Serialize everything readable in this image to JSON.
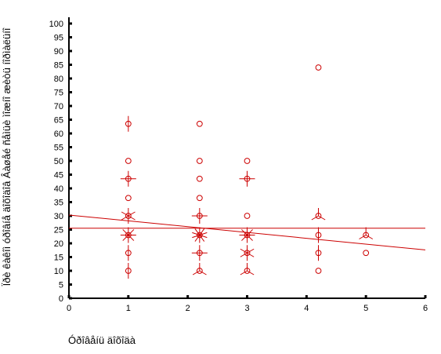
{
  "chart_data": {
    "type": "scatter",
    "ylabel": "Ïðè êàêîì óðîâíå äîõîäîâ Âàøåé ñåìüè ìîæíî æèòü íîðìàëüíî",
    "xlabel": "Óðîâåíü äîõîäà",
    "xlim": [
      0,
      6
    ],
    "ylim": [
      0,
      100
    ],
    "x_ticks": [
      0,
      1,
      2,
      3,
      4,
      5,
      6
    ],
    "y_ticks": [
      0,
      5,
      10,
      15,
      20,
      25,
      30,
      35,
      40,
      45,
      50,
      55,
      60,
      65,
      70,
      75,
      80,
      85,
      90,
      95,
      100
    ],
    "grid": false,
    "legend": "none",
    "marker_color": "#cc0000",
    "reference_line_y": 25.5,
    "fit_line": {
      "x": [
        0,
        6
      ],
      "y": [
        30.3,
        17.6
      ]
    },
    "points": [
      {
        "x": 1,
        "y": 10,
        "n": 2
      },
      {
        "x": 1,
        "y": 16.5,
        "n": 2
      },
      {
        "x": 1,
        "y": 23,
        "n": 8
      },
      {
        "x": 1,
        "y": 30,
        "n": 6
      },
      {
        "x": 1,
        "y": 36.5,
        "n": 1
      },
      {
        "x": 1,
        "y": 43.5,
        "n": 4
      },
      {
        "x": 1,
        "y": 50,
        "n": 1
      },
      {
        "x": 1,
        "y": 63.5,
        "n": 2
      },
      {
        "x": 2.2,
        "y": 10,
        "n": 3
      },
      {
        "x": 2.2,
        "y": 16.5,
        "n": 4
      },
      {
        "x": 2.2,
        "y": 23,
        "n": 10
      },
      {
        "x": 2.2,
        "y": 30,
        "n": 4
      },
      {
        "x": 2.2,
        "y": 36.5,
        "n": 1
      },
      {
        "x": 2.2,
        "y": 43.5,
        "n": 1
      },
      {
        "x": 2.2,
        "y": 50,
        "n": 1
      },
      {
        "x": 2.2,
        "y": 63.5,
        "n": 1
      },
      {
        "x": 3,
        "y": 10,
        "n": 3
      },
      {
        "x": 3,
        "y": 16.5,
        "n": 6
      },
      {
        "x": 3,
        "y": 23,
        "n": 8
      },
      {
        "x": 3,
        "y": 30,
        "n": 1
      },
      {
        "x": 3,
        "y": 43.5,
        "n": 4
      },
      {
        "x": 3,
        "y": 50,
        "n": 1
      },
      {
        "x": 4.2,
        "y": 10,
        "n": 1
      },
      {
        "x": 4.2,
        "y": 16.5,
        "n": 2
      },
      {
        "x": 4.2,
        "y": 23,
        "n": 2
      },
      {
        "x": 4.2,
        "y": 30,
        "n": 3
      },
      {
        "x": 4.2,
        "y": 84,
        "n": 1
      },
      {
        "x": 5,
        "y": 16.5,
        "n": 1
      },
      {
        "x": 5,
        "y": 23,
        "n": 3
      }
    ]
  }
}
